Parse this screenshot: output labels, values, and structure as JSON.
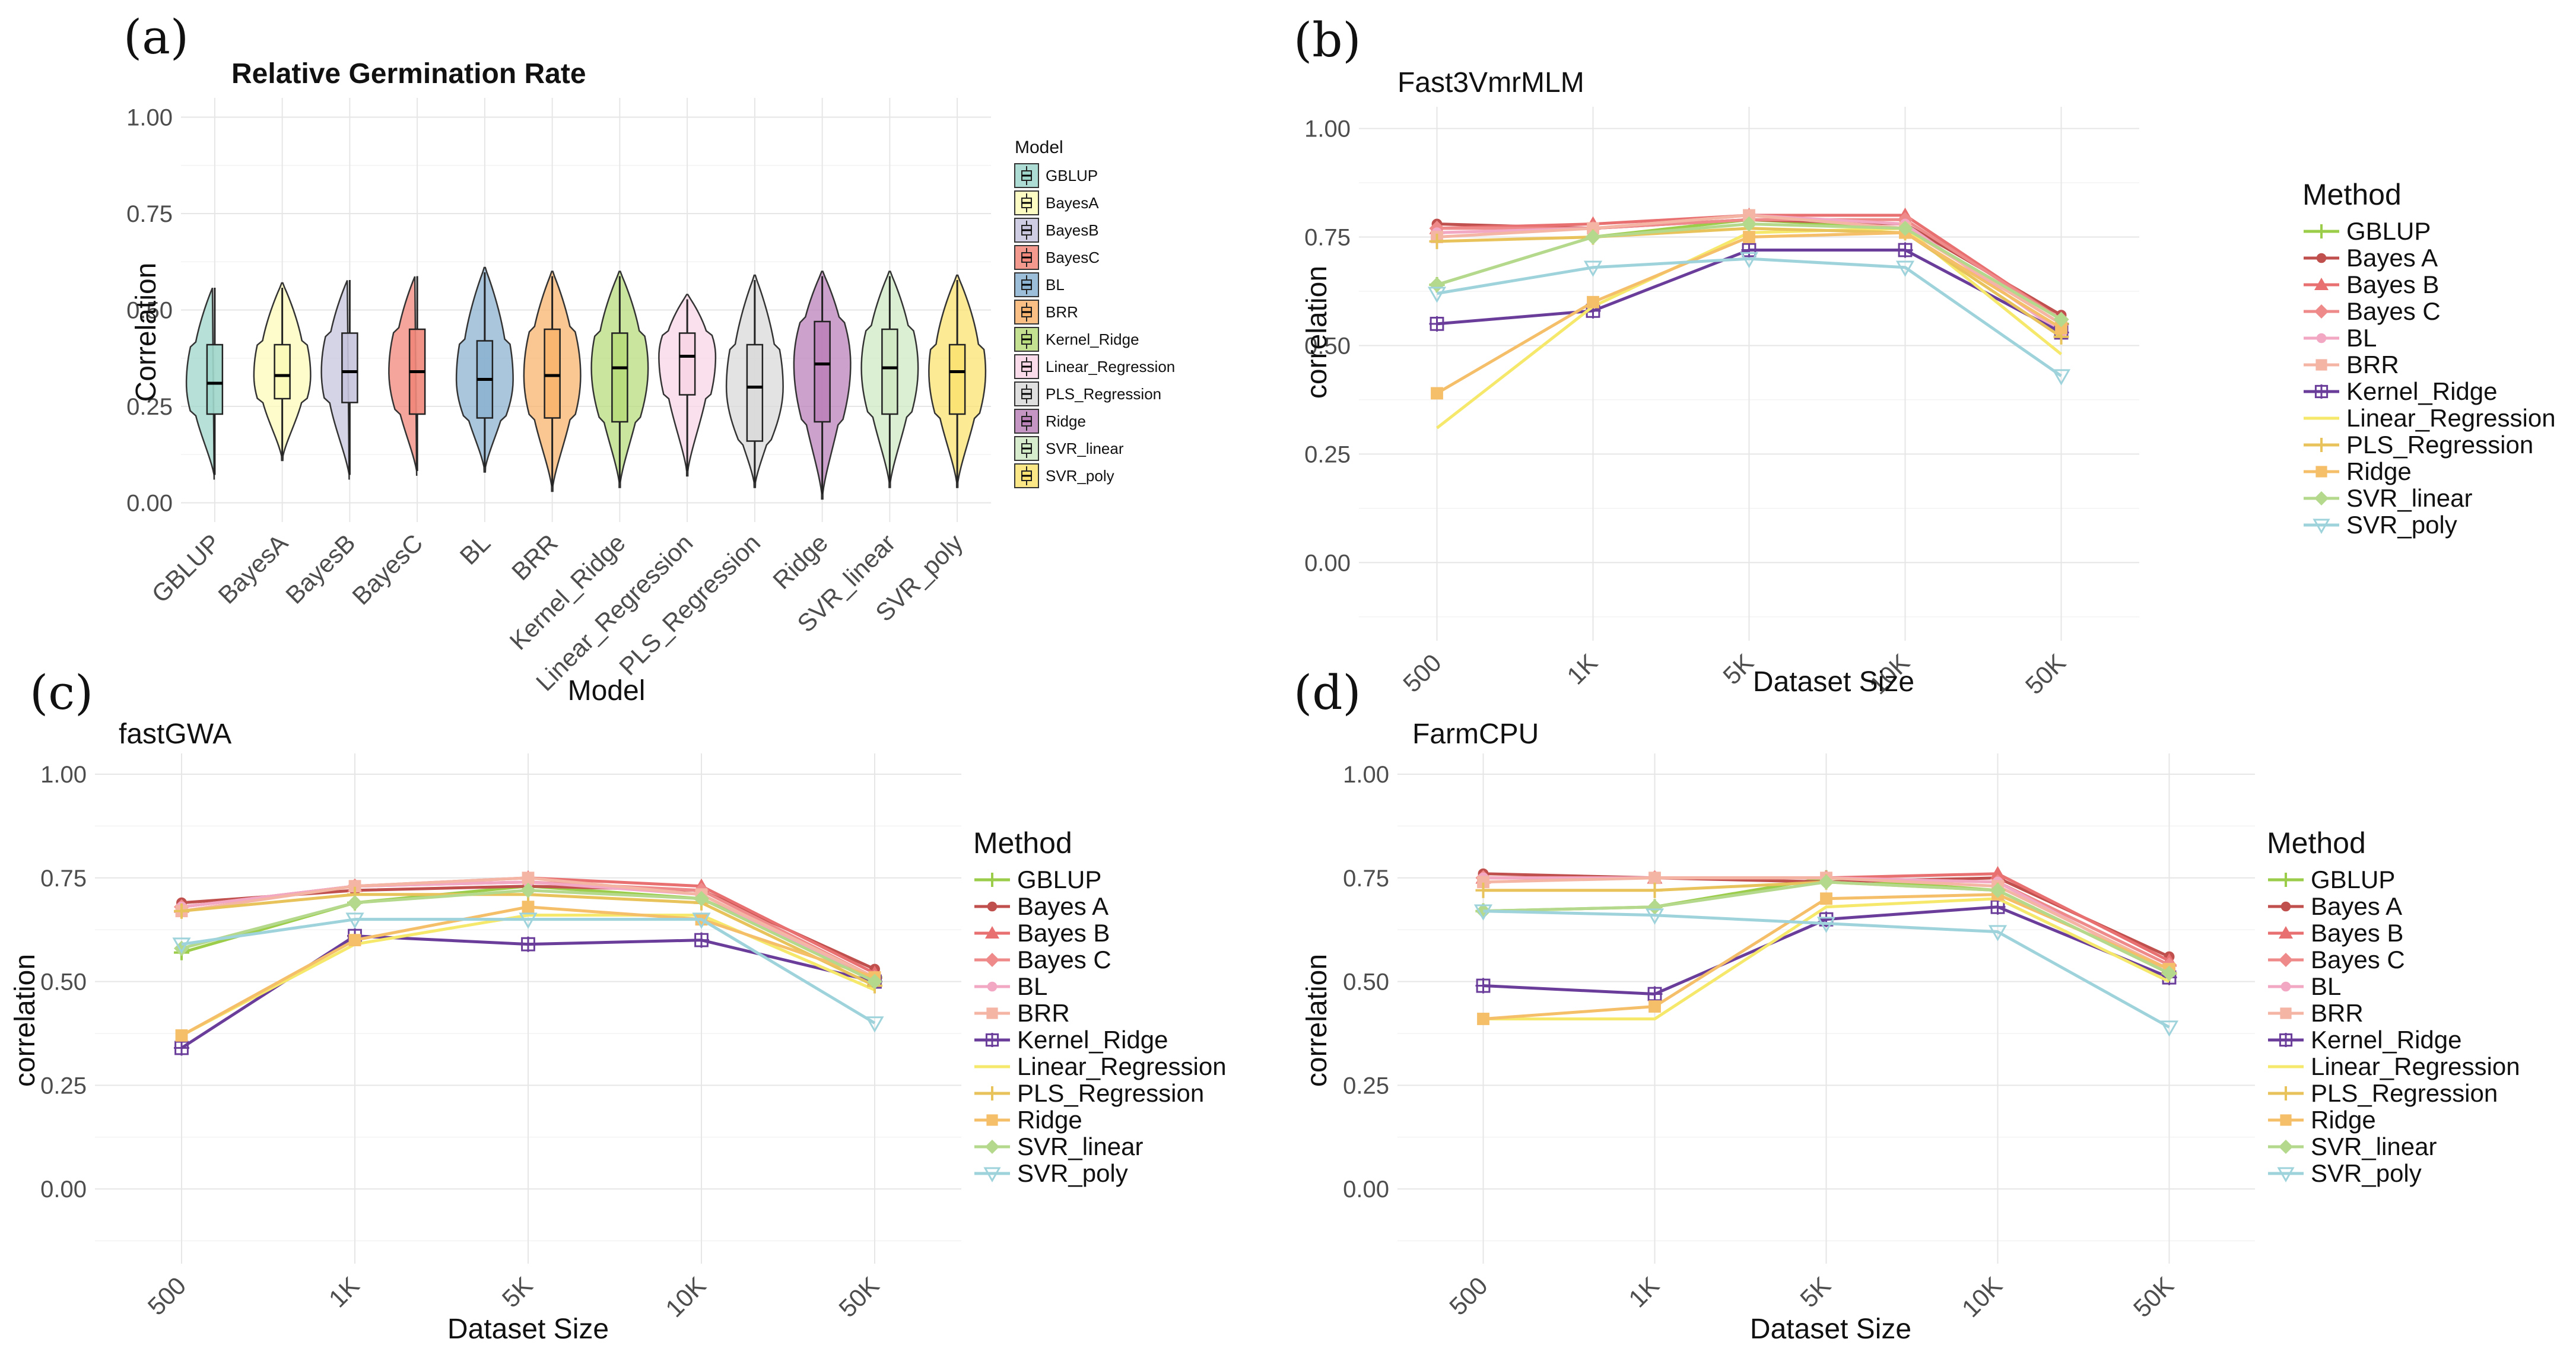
{
  "figure": {
    "panel_labels": [
      "(a)",
      "(b)",
      "(c)",
      "(d)"
    ]
  },
  "chart_data": [
    {
      "id": "a",
      "type": "violin",
      "title": "Relative Germination Rate",
      "xlabel": "Model",
      "ylabel": "Correlation",
      "ylim": [
        0,
        1
      ],
      "yticks": [
        "0.00",
        "0.25",
        "0.50",
        "0.75",
        "1.00"
      ],
      "legend_title": "Model",
      "legend_position": "right",
      "categories": [
        "GBLUP",
        "BayesA",
        "BayesB",
        "BayesC",
        "BL",
        "BRR",
        "Kernel_Ridge",
        "Linear_Regression",
        "PLS_Regression",
        "Ridge",
        "SVR_linear",
        "SVR_poly"
      ],
      "colors": [
        "#9ed6cb",
        "#fdfbb8",
        "#c7c4de",
        "#f1877a",
        "#8cb3d1",
        "#f8b46e",
        "#b8dc7c",
        "#f8d5e5",
        "#d9d9d9",
        "#bb82ba",
        "#cfe9c3",
        "#fbe371"
      ],
      "distributions": [
        {
          "min": 0.06,
          "q1": 0.23,
          "median": 0.31,
          "q3": 0.41,
          "max": 0.57
        },
        {
          "min": 0.11,
          "q1": 0.27,
          "median": 0.33,
          "q3": 0.41,
          "max": 0.57
        },
        {
          "min": 0.06,
          "q1": 0.26,
          "median": 0.34,
          "q3": 0.44,
          "max": 0.59
        },
        {
          "min": 0.07,
          "q1": 0.23,
          "median": 0.34,
          "q3": 0.45,
          "max": 0.6
        },
        {
          "min": 0.08,
          "q1": 0.22,
          "median": 0.32,
          "q3": 0.42,
          "max": 0.61
        },
        {
          "min": 0.03,
          "q1": 0.22,
          "median": 0.33,
          "q3": 0.45,
          "max": 0.6
        },
        {
          "min": 0.04,
          "q1": 0.21,
          "median": 0.35,
          "q3": 0.44,
          "max": 0.6
        },
        {
          "min": 0.07,
          "q1": 0.28,
          "median": 0.38,
          "q3": 0.44,
          "max": 0.54
        },
        {
          "min": 0.04,
          "q1": 0.16,
          "median": 0.3,
          "q3": 0.41,
          "max": 0.59
        },
        {
          "min": 0.01,
          "q1": 0.21,
          "median": 0.36,
          "q3": 0.47,
          "max": 0.6
        },
        {
          "min": 0.04,
          "q1": 0.23,
          "median": 0.35,
          "q3": 0.45,
          "max": 0.6
        },
        {
          "min": 0.04,
          "q1": 0.23,
          "median": 0.34,
          "q3": 0.41,
          "max": 0.59
        }
      ]
    },
    {
      "id": "b",
      "type": "line",
      "title": "Fast3VmrMLM",
      "xlabel": "Dataset Size",
      "ylabel": "correlation",
      "categories": [
        "500",
        "1K",
        "5K",
        "10K",
        "50K"
      ],
      "ylim": [
        -0.18,
        1.05
      ],
      "yticks": [
        "0.00",
        "0.25",
        "0.50",
        "0.75",
        "1.00"
      ],
      "legend_title": "Method",
      "legend_position": "right",
      "series": [
        {
          "name": "GBLUP",
          "color": "#9ccd4a",
          "marker": "plus",
          "values": [
            0.64,
            0.75,
            0.79,
            0.77,
            0.55
          ]
        },
        {
          "name": "Bayes A",
          "color": "#c0504d",
          "marker": "circle",
          "values": [
            0.78,
            0.77,
            0.79,
            0.78,
            0.57
          ]
        },
        {
          "name": "Bayes B",
          "color": "#e87070",
          "marker": "triangle",
          "values": [
            0.77,
            0.78,
            0.8,
            0.8,
            0.56
          ]
        },
        {
          "name": "Bayes C",
          "color": "#ef8a8a",
          "marker": "diamond",
          "values": [
            0.77,
            0.77,
            0.79,
            0.79,
            0.56
          ]
        },
        {
          "name": "BL",
          "color": "#f2a7c3",
          "marker": "circle",
          "values": [
            0.76,
            0.77,
            0.8,
            0.78,
            0.53
          ]
        },
        {
          "name": "BRR",
          "color": "#f4b5a5",
          "marker": "square",
          "values": [
            0.75,
            0.77,
            0.8,
            0.77,
            0.55
          ]
        },
        {
          "name": "Kernel_Ridge",
          "color": "#6a3d9a",
          "marker": "crossbox",
          "values": [
            0.55,
            0.58,
            0.72,
            0.72,
            0.53
          ]
        },
        {
          "name": "Linear_Regression",
          "color": "#f5e86a",
          "marker": "none",
          "values": [
            0.31,
            0.59,
            0.76,
            0.77,
            0.48
          ]
        },
        {
          "name": "PLS_Regression",
          "color": "#e8c25a",
          "marker": "plus",
          "values": [
            0.74,
            0.75,
            0.77,
            0.76,
            0.52
          ]
        },
        {
          "name": "Ridge",
          "color": "#f5be68",
          "marker": "square",
          "values": [
            0.39,
            0.6,
            0.75,
            0.76,
            0.54
          ]
        },
        {
          "name": "SVR_linear",
          "color": "#b5d98c",
          "marker": "diamond",
          "values": [
            0.64,
            0.75,
            0.78,
            0.77,
            0.56
          ]
        },
        {
          "name": "SVR_poly",
          "color": "#9ed3dc",
          "marker": "tridown",
          "values": [
            0.62,
            0.68,
            0.7,
            0.68,
            0.43
          ]
        }
      ]
    },
    {
      "id": "c",
      "type": "line",
      "title": "fastGWA",
      "xlabel": "Dataset Size",
      "ylabel": "correlation",
      "categories": [
        "500",
        "1K",
        "5K",
        "10K",
        "50K"
      ],
      "ylim": [
        -0.18,
        1.05
      ],
      "yticks": [
        "0.00",
        "0.25",
        "0.50",
        "0.75",
        "1.00"
      ],
      "legend_title": "Method",
      "legend_position": "right",
      "series": [
        {
          "name": "GBLUP",
          "color": "#9ccd4a",
          "marker": "plus",
          "values": [
            0.57,
            0.69,
            0.73,
            0.7,
            0.51
          ]
        },
        {
          "name": "Bayes A",
          "color": "#c0504d",
          "marker": "circle",
          "values": [
            0.69,
            0.72,
            0.73,
            0.72,
            0.53
          ]
        },
        {
          "name": "Bayes B",
          "color": "#e87070",
          "marker": "triangle",
          "values": [
            0.68,
            0.73,
            0.75,
            0.73,
            0.52
          ]
        },
        {
          "name": "Bayes C",
          "color": "#ef8a8a",
          "marker": "diamond",
          "values": [
            0.68,
            0.73,
            0.74,
            0.72,
            0.51
          ]
        },
        {
          "name": "BL",
          "color": "#f2a7c3",
          "marker": "circle",
          "values": [
            0.68,
            0.73,
            0.74,
            0.71,
            0.5
          ]
        },
        {
          "name": "BRR",
          "color": "#f4b5a5",
          "marker": "square",
          "values": [
            0.67,
            0.73,
            0.75,
            0.71,
            0.51
          ]
        },
        {
          "name": "Kernel_Ridge",
          "color": "#6a3d9a",
          "marker": "crossbox",
          "values": [
            0.34,
            0.61,
            0.59,
            0.6,
            0.5
          ]
        },
        {
          "name": "Linear_Regression",
          "color": "#f5e86a",
          "marker": "none",
          "values": [
            0.37,
            0.59,
            0.66,
            0.66,
            0.48
          ]
        },
        {
          "name": "PLS_Regression",
          "color": "#e8c25a",
          "marker": "plus",
          "values": [
            0.67,
            0.71,
            0.71,
            0.69,
            0.49
          ]
        },
        {
          "name": "Ridge",
          "color": "#f5be68",
          "marker": "square",
          "values": [
            0.37,
            0.6,
            0.68,
            0.65,
            0.51
          ]
        },
        {
          "name": "SVR_linear",
          "color": "#b5d98c",
          "marker": "diamond",
          "values": [
            0.58,
            0.69,
            0.72,
            0.7,
            0.5
          ]
        },
        {
          "name": "SVR_poly",
          "color": "#9ed3dc",
          "marker": "tridown",
          "values": [
            0.59,
            0.65,
            0.65,
            0.65,
            0.4
          ]
        }
      ]
    },
    {
      "id": "d",
      "type": "line",
      "title": "FarmCPU",
      "xlabel": "Dataset Size",
      "ylabel": "correlation",
      "categories": [
        "500",
        "1K",
        "5K",
        "10K",
        "50K"
      ],
      "ylim": [
        -0.18,
        1.05
      ],
      "yticks": [
        "0.00",
        "0.25",
        "0.50",
        "0.75",
        "1.00"
      ],
      "legend_title": "Method",
      "legend_position": "right",
      "series": [
        {
          "name": "GBLUP",
          "color": "#9ccd4a",
          "marker": "plus",
          "values": [
            0.67,
            0.68,
            0.75,
            0.72,
            0.52
          ]
        },
        {
          "name": "Bayes A",
          "color": "#c0504d",
          "marker": "circle",
          "values": [
            0.76,
            0.75,
            0.74,
            0.75,
            0.56
          ]
        },
        {
          "name": "Bayes B",
          "color": "#e87070",
          "marker": "triangle",
          "values": [
            0.75,
            0.75,
            0.75,
            0.76,
            0.55
          ]
        },
        {
          "name": "Bayes C",
          "color": "#ef8a8a",
          "marker": "diamond",
          "values": [
            0.75,
            0.75,
            0.75,
            0.74,
            0.54
          ]
        },
        {
          "name": "BL",
          "color": "#f2a7c3",
          "marker": "circle",
          "values": [
            0.75,
            0.75,
            0.75,
            0.74,
            0.52
          ]
        },
        {
          "name": "BRR",
          "color": "#f4b5a5",
          "marker": "square",
          "values": [
            0.74,
            0.75,
            0.75,
            0.73,
            0.53
          ]
        },
        {
          "name": "Kernel_Ridge",
          "color": "#6a3d9a",
          "marker": "crossbox",
          "values": [
            0.49,
            0.47,
            0.65,
            0.68,
            0.51
          ]
        },
        {
          "name": "Linear_Regression",
          "color": "#f5e86a",
          "marker": "none",
          "values": [
            0.41,
            0.41,
            0.68,
            0.7,
            0.5
          ]
        },
        {
          "name": "PLS_Regression",
          "color": "#e8c25a",
          "marker": "plus",
          "values": [
            0.72,
            0.72,
            0.74,
            0.72,
            0.52
          ]
        },
        {
          "name": "Ridge",
          "color": "#f5be68",
          "marker": "square",
          "values": [
            0.41,
            0.44,
            0.7,
            0.71,
            0.53
          ]
        },
        {
          "name": "SVR_linear",
          "color": "#b5d98c",
          "marker": "diamond",
          "values": [
            0.67,
            0.68,
            0.74,
            0.72,
            0.52
          ]
        },
        {
          "name": "SVR_poly",
          "color": "#9ed3dc",
          "marker": "tridown",
          "values": [
            0.67,
            0.66,
            0.64,
            0.62,
            0.39
          ]
        }
      ]
    }
  ]
}
